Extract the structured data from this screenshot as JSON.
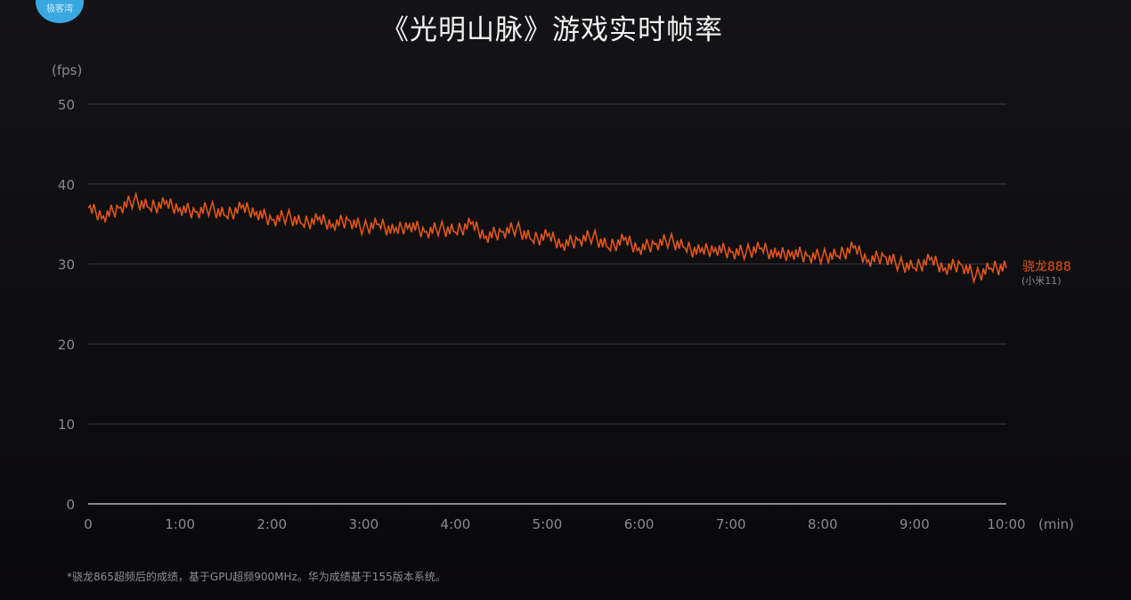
{
  "logo_text": "极客湾",
  "footnote": "*骁龙865超频后的成绩，基于GPU超频900MHz。华为成绩基于155版本系统。",
  "colors": {
    "series": "#e0561c",
    "grid": "#3a3a3c",
    "text": "#8a8a8c"
  },
  "chart_data": {
    "type": "line",
    "title": "《光明山脉》游戏实时帧率",
    "ylabel": "(fps)",
    "xlabel": "(min)",
    "ylim": [
      0,
      50
    ],
    "xlim": [
      0,
      10
    ],
    "yticks": [
      "0",
      "10",
      "20",
      "30",
      "40",
      "50"
    ],
    "xticks": [
      "0",
      "1:00",
      "2:00",
      "3:00",
      "4:00",
      "5:00",
      "6:00",
      "7:00",
      "8:00",
      "9:00",
      "10:00"
    ],
    "grid": true,
    "series": [
      {
        "name": "骁龙888",
        "sublabel": "(小米11)",
        "x_step_seconds": 10,
        "values": [
          37,
          36,
          37,
          38,
          37,
          37.5,
          37,
          36.5,
          37,
          36,
          37,
          36.5,
          35.5,
          36,
          35,
          35.5,
          35,
          35.5,
          34.5,
          35,
          34,
          35,
          34,
          34.5,
          34,
          35,
          33.5,
          34,
          34.5,
          33,
          33.5,
          32.5,
          33,
          33.5,
          32,
          33,
          32,
          32.5,
          33,
          32,
          31.5,
          32,
          31.5,
          31.5,
          32,
          31,
          31.5,
          31,
          31,
          31,
          32,
          30.5,
          31,
          30,
          29.5,
          30.5,
          29.5,
          30,
          28.5,
          29.5,
          29.5
        ]
      }
    ]
  }
}
